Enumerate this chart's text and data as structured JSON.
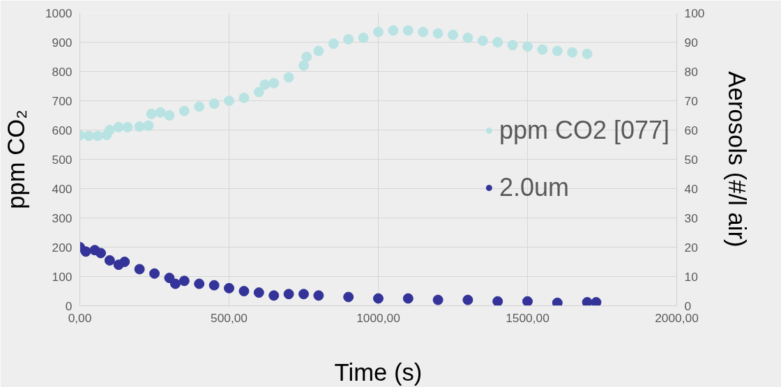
{
  "chart_data": {
    "type": "scatter",
    "xlabel": "Time (s)",
    "ylabel": "ppm CO₂",
    "y2label": "Aerosols (#/l air)",
    "xlim": [
      0,
      2000
    ],
    "xticks": [
      {
        "value": 0,
        "label": "0,00"
      },
      {
        "value": 500,
        "label": "500,00"
      },
      {
        "value": 1000,
        "label": "1000,00"
      },
      {
        "value": 1500,
        "label": "1500,00"
      },
      {
        "value": 2000,
        "label": "2000,00"
      }
    ],
    "ylim": [
      0,
      1000
    ],
    "yticks": [
      0,
      100,
      200,
      300,
      400,
      500,
      600,
      700,
      800,
      900,
      1000
    ],
    "y2lim": [
      0,
      100
    ],
    "y2ticks": [
      0,
      10,
      20,
      30,
      40,
      50,
      60,
      70,
      80,
      90,
      100
    ],
    "grid": true,
    "legend": "right",
    "marker": "circle",
    "series": [
      {
        "name": "ppm CO2 [077]",
        "color": "#b9e3e3",
        "x": [
          0,
          30,
          60,
          90,
          100,
          130,
          160,
          200,
          230,
          240,
          270,
          300,
          350,
          400,
          450,
          500,
          550,
          600,
          620,
          650,
          700,
          750,
          760,
          800,
          850,
          900,
          950,
          1000,
          1050,
          1100,
          1150,
          1200,
          1250,
          1300,
          1350,
          1400,
          1450,
          1500,
          1550,
          1600,
          1650,
          1700
        ],
        "values": [
          582,
          580,
          580,
          583,
          600,
          610,
          610,
          612,
          615,
          655,
          660,
          650,
          665,
          680,
          690,
          700,
          710,
          730,
          755,
          760,
          780,
          820,
          850,
          870,
          895,
          910,
          915,
          935,
          940,
          940,
          935,
          930,
          925,
          915,
          905,
          900,
          890,
          885,
          875,
          870,
          865,
          860
        ]
      },
      {
        "name": "2.0um",
        "color": "#333399",
        "axis": "y2",
        "x": [
          0,
          20,
          50,
          70,
          100,
          130,
          150,
          200,
          250,
          300,
          320,
          350,
          400,
          450,
          500,
          550,
          600,
          650,
          700,
          750,
          800,
          900,
          1000,
          1100,
          1200,
          1300,
          1400,
          1500,
          1600,
          1700,
          1730
        ],
        "values": [
          20,
          18.5,
          19,
          18,
          15.5,
          14,
          15,
          12.5,
          11,
          9.5,
          7.5,
          8.5,
          7.5,
          7,
          6,
          5,
          4.5,
          3.5,
          4,
          4,
          3.5,
          3,
          2.5,
          2.5,
          2,
          2,
          1.5,
          1.5,
          1,
          1.2,
          1.2
        ]
      }
    ]
  }
}
